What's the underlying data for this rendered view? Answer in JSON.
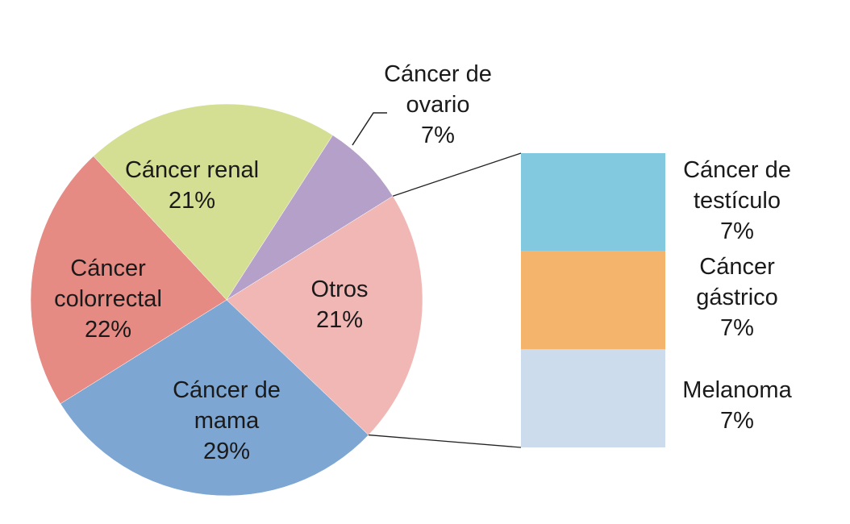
{
  "chart_data": {
    "type": "pie",
    "subtype": "bar-of-pie",
    "pie": [
      {
        "label": [
          "Otros",
          "21%"
        ],
        "value": 21,
        "color": "#f0b7b4",
        "slice": "otros"
      },
      {
        "label": [
          "Cáncer de",
          "mama",
          "29%"
        ],
        "value": 29,
        "color": "#7ea6d3",
        "slice": "mama"
      },
      {
        "label": [
          "Cáncer",
          "colorrectal",
          "22%"
        ],
        "value": 22,
        "color": "#e68a84",
        "slice": "colorrectal"
      },
      {
        "label": [
          "Cáncer renal",
          "21%"
        ],
        "value": 21,
        "color": "#d4df94",
        "slice": "renal"
      },
      {
        "label": [
          "Cáncer de",
          "ovario",
          "7%"
        ],
        "value": 7,
        "color": "#b4a0c9",
        "slice": "ovario"
      }
    ],
    "breakdown_of": "Otros",
    "bar": [
      {
        "label": [
          "Cáncer de",
          "testículo",
          "7%"
        ],
        "value": 7,
        "color": "#82c8de",
        "slice": "testiculo"
      },
      {
        "label": [
          "Cáncer",
          "gástrico",
          "7%"
        ],
        "value": 7,
        "color": "#f4b46c",
        "slice": "gastrico"
      },
      {
        "label": [
          "Melanoma",
          "7%"
        ],
        "value": 7,
        "color": "#ccdcec",
        "slice": "melanoma"
      }
    ]
  }
}
